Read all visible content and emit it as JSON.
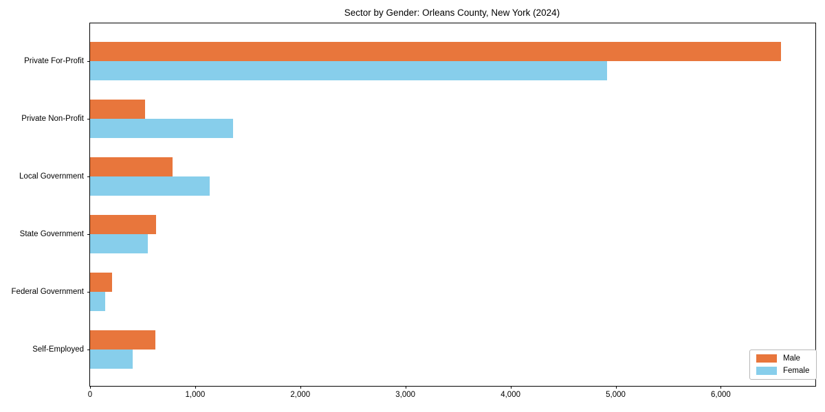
{
  "chart_data": {
    "type": "bar",
    "orientation": "horizontal",
    "title": "Sector by Gender: Orleans County, New York (2024)",
    "categories": [
      "Private For-Profit",
      "Private Non-Profit",
      "Local Government",
      "State Government",
      "Federal Government",
      "Self-Employed"
    ],
    "series": [
      {
        "name": "Male",
        "color": "#e8763c",
        "values": [
          6575,
          520,
          785,
          630,
          210,
          620
        ]
      },
      {
        "name": "Female",
        "color": "#87ceeb",
        "values": [
          4915,
          1360,
          1140,
          550,
          145,
          405
        ]
      }
    ],
    "xlim": [
      0,
      6900
    ],
    "xticks": [
      0,
      1000,
      2000,
      3000,
      4000,
      5000,
      6000
    ],
    "xtick_labels": [
      "0",
      "1,000",
      "2,000",
      "3,000",
      "4,000",
      "5,000",
      "6,000"
    ],
    "legend": {
      "position": "lower right",
      "entries": [
        "Male",
        "Female"
      ]
    },
    "grid": false,
    "background": "#ffffff"
  }
}
